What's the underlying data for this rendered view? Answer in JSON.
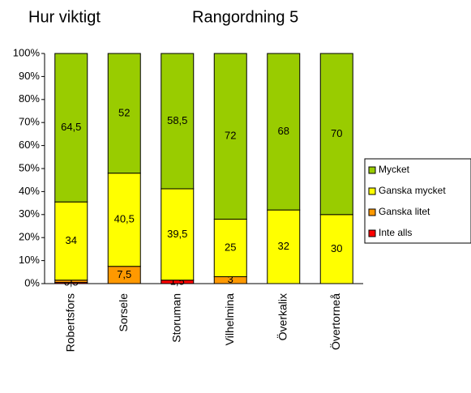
{
  "chart_data": {
    "type": "stacked_percent_bar",
    "title": "Hur viktigt",
    "subtitle": "Rangordning 5",
    "categories": [
      "Robertsfors",
      "Sorsele",
      "Storuman",
      "Vilhelmina",
      "Överkalix",
      "Övertorneå"
    ],
    "series": [
      {
        "name": "Inte alls",
        "color": "#ff0000",
        "values": [
          0.5,
          0,
          1.5,
          0,
          0,
          0
        ],
        "value_labels": [
          "0,5",
          null,
          "1,5",
          null,
          null,
          null
        ]
      },
      {
        "name": "Ganska litet",
        "color": "#ff9900",
        "values": [
          1,
          7.5,
          0,
          3,
          0,
          0
        ],
        "value_labels": [
          "1",
          "7,5",
          null,
          "3",
          null,
          null
        ]
      },
      {
        "name": "Ganska mycket",
        "color": "#ffff00",
        "values": [
          34,
          40.5,
          39.5,
          25,
          32,
          30
        ],
        "value_labels": [
          "34",
          "40,5",
          "39,5",
          "25",
          "32",
          "30"
        ]
      },
      {
        "name": "Mycket",
        "color": "#99cc00",
        "values": [
          64.5,
          52,
          58.5,
          72,
          68,
          70
        ],
        "value_labels": [
          "64,5",
          "52",
          "58,5",
          "72",
          "68",
          "70"
        ]
      }
    ],
    "ylim": [
      0,
      100
    ],
    "yticks": [
      {
        "value": 0,
        "label": "0%"
      },
      {
        "value": 10,
        "label": "10%"
      },
      {
        "value": 20,
        "label": "20%"
      },
      {
        "value": 30,
        "label": "30%"
      },
      {
        "value": 40,
        "label": "40%"
      },
      {
        "value": 50,
        "label": "50%"
      },
      {
        "value": 60,
        "label": "60%"
      },
      {
        "value": 70,
        "label": "70%"
      },
      {
        "value": 80,
        "label": "80%"
      },
      {
        "value": 90,
        "label": "90%"
      },
      {
        "value": 100,
        "label": "100%"
      }
    ]
  }
}
